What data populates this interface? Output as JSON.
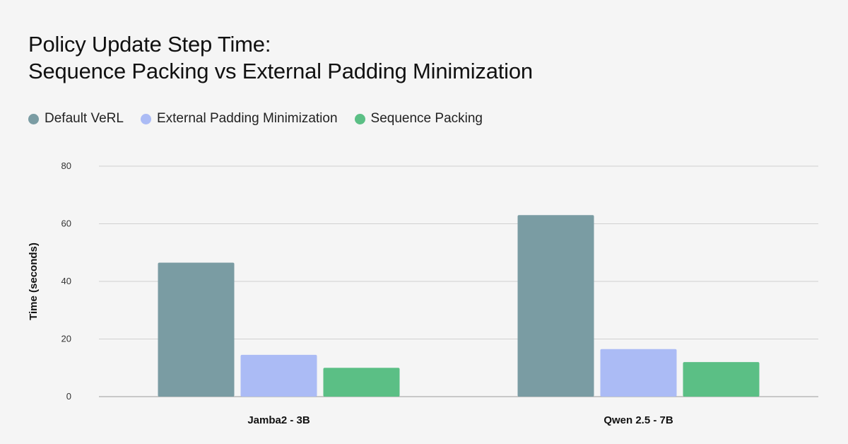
{
  "chart_data": {
    "type": "bar",
    "title": [
      "Policy Update Step Time:",
      "Sequence Packing vs External Padding Minimization"
    ],
    "ylabel": "Time (seconds)",
    "xlabel": "",
    "ylim": [
      0,
      80
    ],
    "yticks": [
      "0",
      "20",
      "40",
      "60",
      "80"
    ],
    "categories": [
      "Jamba2 - 3B",
      "Qwen 2.5 - 7B"
    ],
    "series": [
      {
        "name": "Default VeRL",
        "color": "#7a9ca3",
        "values": [
          46.5,
          63
        ]
      },
      {
        "name": "External Padding Minimization",
        "color": "#abbbf5",
        "values": [
          14.5,
          16.5
        ]
      },
      {
        "name": "Sequence Packing",
        "color": "#5bbf85",
        "values": [
          10,
          12
        ]
      }
    ],
    "grid": true,
    "legend_position": "top-left"
  }
}
